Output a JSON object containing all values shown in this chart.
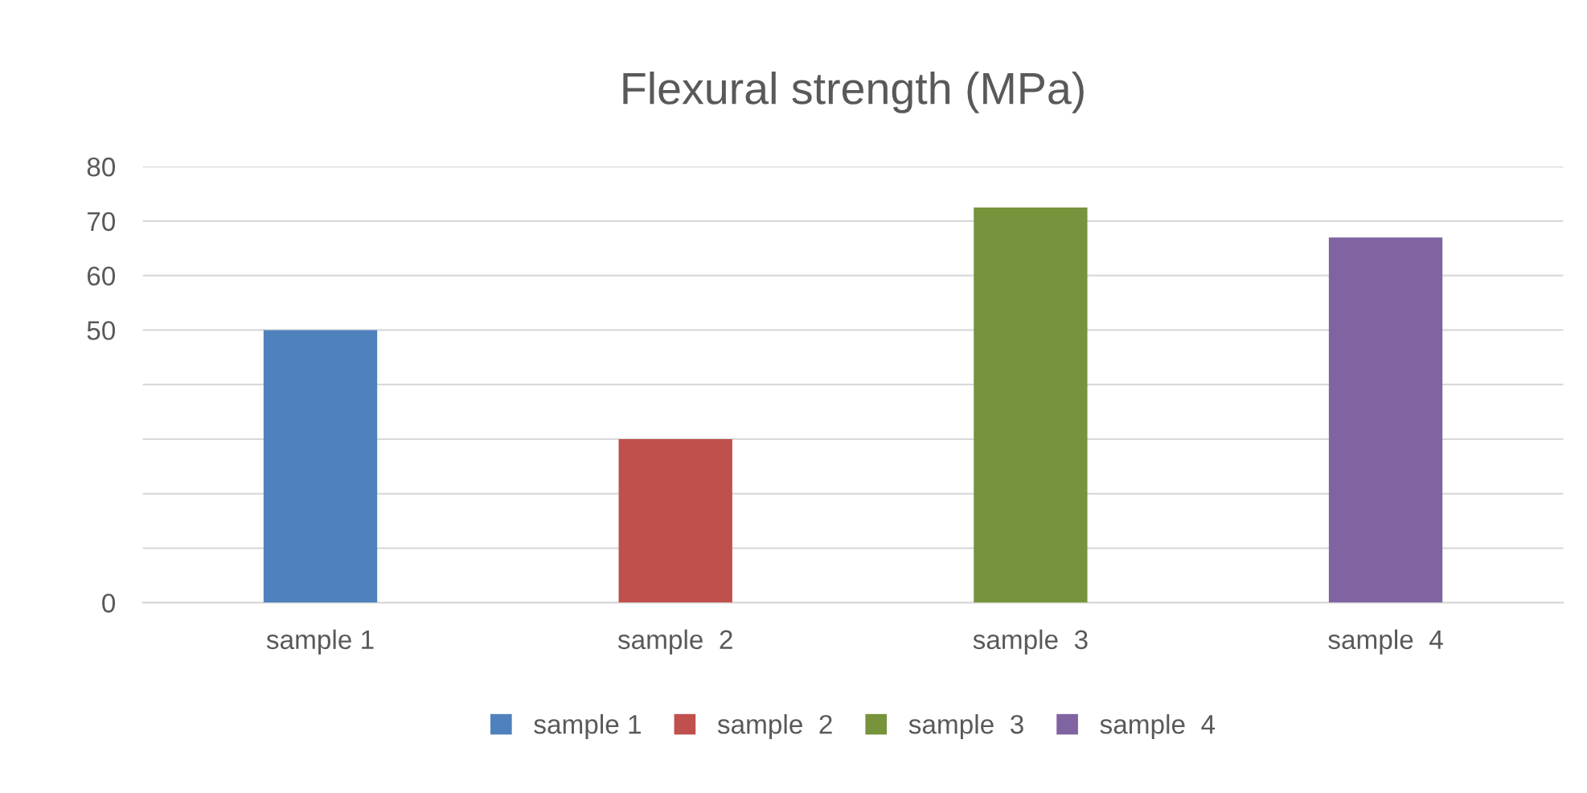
{
  "chart_data": {
    "type": "bar",
    "title": "Flexural strength (MPa)",
    "categories": [
      "sample 1",
      "sample  2",
      "sample  3",
      "sample  4"
    ],
    "stacked": true,
    "series": [
      {
        "name": "sample 1",
        "color": "#4f81bd",
        "values": [
          50,
          null,
          null,
          null
        ]
      },
      {
        "name": "sample  2",
        "color": "#c0504d",
        "values": [
          null,
          30,
          null,
          null
        ]
      },
      {
        "name": "sample  3",
        "color": "#77933c",
        "values": [
          null,
          null,
          72.5,
          null
        ]
      },
      {
        "name": "sample  4",
        "color": "#8064a2",
        "values": [
          null,
          null,
          null,
          67
        ]
      }
    ],
    "ylim": [
      0,
      80
    ],
    "yticks": [
      0,
      {
        "value": 10,
        "label": null
      },
      {
        "value": 20,
        "label": null
      },
      {
        "value": 30,
        "label": null
      },
      {
        "value": 40,
        "label": null
      },
      50,
      60,
      70,
      80
    ],
    "grid": "y",
    "legend": "bottom"
  }
}
